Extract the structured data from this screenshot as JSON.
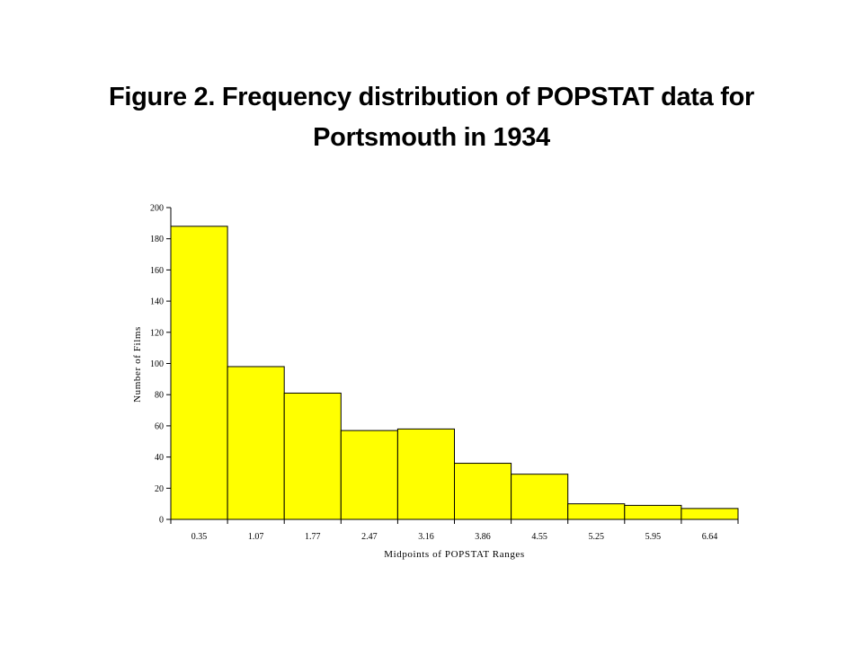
{
  "title_line1": "Figure 2.  Frequency distribution of POPSTAT data for",
  "title_line2": "Portsmouth in 1934",
  "chart_data": {
    "type": "bar",
    "title": "Figure 2.  Frequency distribution of POPSTAT data for Portsmouth in 1934",
    "categories": [
      "0.35",
      "1.07",
      "1.77",
      "2.47",
      "3.16",
      "3.86",
      "4.55",
      "5.25",
      "5.95",
      "6.64"
    ],
    "values": [
      188,
      98,
      81,
      57,
      58,
      36,
      29,
      10,
      9,
      7
    ],
    "xlabel": "Midpoints of POPSTAT Ranges",
    "ylabel": "Number of Films",
    "ylim": [
      0,
      200
    ],
    "yticks": [
      0,
      20,
      40,
      60,
      80,
      100,
      120,
      140,
      160,
      180,
      200
    ],
    "bar_color": "#ffff00",
    "bar_edge_color": "#000000",
    "grid": false,
    "legend": "none"
  }
}
